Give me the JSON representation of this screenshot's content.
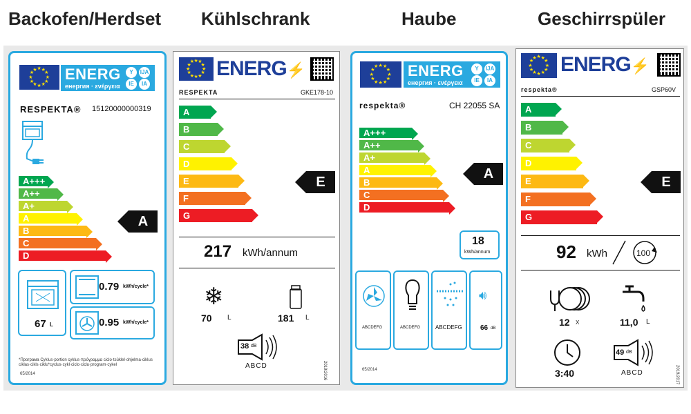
{
  "headings": [
    "Backofen/Herdset",
    "Kühlschrank",
    "Haube",
    "Geschirrspüler"
  ],
  "oven": {
    "energ": "ENERG",
    "energ_sub": "енергия · ενέργεια",
    "langs": [
      "Y",
      "IJA",
      "IE",
      "IA"
    ],
    "brand": "RESPEKTA®",
    "model": "15120000000319",
    "classes": [
      "A+++",
      "A++",
      "A+",
      "A",
      "B",
      "C",
      "D"
    ],
    "colors": [
      "#00a650",
      "#50b848",
      "#bed630",
      "#fff200",
      "#fdb913",
      "#f37021",
      "#ed1c24"
    ],
    "rating": "A",
    "values": [
      "0.79",
      "0.95"
    ],
    "unit": "kWh/cycle*",
    "volume": "67",
    "volume_unit": "L",
    "footnote": "*Програма Cyklus·portion cyklus·πρόγραμμα ciclo·tsüklel·ohjelma·ciklus ciklas·cikls·ciklu*cyclus·cykl·ciclo·ciclu·program·cykel",
    "regulation": "65/2014"
  },
  "fridge": {
    "energ": "ENERG",
    "brand": "RESPEKTA",
    "model": "GKE178-10",
    "classes": [
      "A",
      "B",
      "C",
      "D",
      "E",
      "F",
      "G"
    ],
    "colors": [
      "#00a650",
      "#50b848",
      "#bed630",
      "#fff200",
      "#fdb913",
      "#f37021",
      "#ed1c24"
    ],
    "rating": "E",
    "consumption": "217",
    "consumption_unit": "kWh/annum",
    "freezer": "70",
    "freezer_unit": "L",
    "fridge": "181",
    "fridge_unit": "L",
    "noise": "38",
    "noise_unit": "dB",
    "noise_class": "ABCD",
    "regulation": "2019/2016"
  },
  "hood": {
    "energ": "ENERG",
    "energ_sub": "енергия · ενέργεια",
    "langs": [
      "Y",
      "IJA",
      "IE",
      "IA"
    ],
    "brand": "respekta®",
    "model": "CH 22055 SA",
    "classes": [
      "A+++",
      "A++",
      "A+",
      "A",
      "B",
      "C",
      "D"
    ],
    "colors": [
      "#00a650",
      "#50b848",
      "#bed630",
      "#fff200",
      "#fdb913",
      "#f37021",
      "#ed1c24"
    ],
    "rating": "A",
    "consumption": "18",
    "consumption_unit": "kWh/annum",
    "fan_class": "ABCDEFG",
    "light_class": "ABCDEFG",
    "grease_class": "ABCDEFG",
    "noise": "66",
    "noise_unit": "dB",
    "regulation": "65/2014"
  },
  "dishwasher": {
    "energ": "ENERG",
    "brand": "respekta®",
    "model": "GSP60V",
    "classes": [
      "A",
      "B",
      "C",
      "D",
      "E",
      "F",
      "G"
    ],
    "colors": [
      "#00a650",
      "#50b848",
      "#bed630",
      "#fff200",
      "#fdb913",
      "#f37021",
      "#ed1c24"
    ],
    "rating": "E",
    "consumption": "92",
    "consumption_unit": "kWh",
    "cycles": "100",
    "place_settings": "12",
    "place_unit": "X",
    "water": "11,0",
    "water_unit": "L",
    "duration": "3:40",
    "noise": "49",
    "noise_unit": "dB",
    "noise_class": "ABCD",
    "regulation": "2019/2017"
  }
}
